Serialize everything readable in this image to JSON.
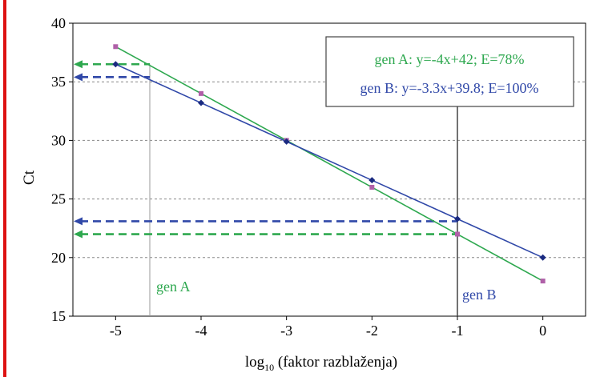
{
  "chart_data": {
    "type": "line",
    "title": "",
    "xlabel_base": "log",
    "xlabel_sub": "10",
    "xlabel_rest": " (faktor razblaženja)",
    "ylabel": "Ct",
    "xlim": [
      -5.5,
      0.5
    ],
    "ylim": [
      15,
      40
    ],
    "x_ticks": [
      -5,
      -4,
      -3,
      -2,
      -1,
      0
    ],
    "y_ticks": [
      15,
      20,
      25,
      30,
      35,
      40
    ],
    "y_grid": true,
    "legend_position": "top-right",
    "series": [
      {
        "name": "gen A",
        "equation": "gen A:  y=-4x+42; E=78%",
        "color": "#2ea84f",
        "marker_color": "#b060a8",
        "x": [
          -5,
          -4,
          -3,
          -2,
          -1,
          0
        ],
        "y": [
          38,
          34,
          30,
          26,
          22,
          18
        ],
        "annotation": "gen A",
        "guide_x": -4.6,
        "guide_y": 36.5,
        "guide_y2": 22
      },
      {
        "name": "gen B",
        "equation": "gen B: y=-3.3x+39.8; E=100%",
        "color": "#3048a8",
        "marker_color": "#1a2a80",
        "x": [
          -5,
          -4,
          -3,
          -2,
          -1,
          0
        ],
        "y": [
          36.5,
          33.2,
          29.9,
          26.6,
          23.3,
          20
        ],
        "annotation": "gen B",
        "guide_x": -1,
        "guide_y": 35.4,
        "guide_y2": 23.1
      }
    ]
  }
}
